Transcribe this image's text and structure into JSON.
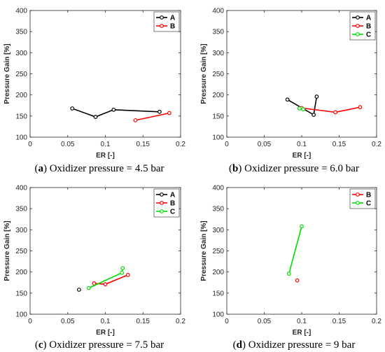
{
  "chart_data": [
    {
      "type": "line",
      "caption_letter": "a",
      "caption_text": "Oxidizer pressure = 4.5 bar",
      "xlabel": "ER [-]",
      "ylabel": "Pressure Gain [%]",
      "xlim": [
        0,
        0.2
      ],
      "ylim": [
        100,
        400
      ],
      "xticks": [
        "0",
        "0.05",
        "0.1",
        "0.15",
        "0.2"
      ],
      "yticks": [
        "100",
        "150",
        "200",
        "250",
        "300",
        "350",
        "400"
      ],
      "legend_position": "top-right",
      "series": [
        {
          "name": "A",
          "color": "#000000",
          "x": [
            0.056,
            0.087,
            0.111,
            0.172
          ],
          "y": [
            168,
            148,
            165,
            160
          ]
        },
        {
          "name": "B",
          "color": "#ff0000",
          "x": [
            0.14,
            0.185
          ],
          "y": [
            140,
            157
          ]
        }
      ]
    },
    {
      "type": "line",
      "caption_letter": "b",
      "caption_text": "Oxidizer pressure = 6.0 bar",
      "xlabel": "ER [-]",
      "ylabel": "Pressure Gain [%]",
      "xlim": [
        0,
        0.2
      ],
      "ylim": [
        100,
        400
      ],
      "xticks": [
        "0",
        "0.05",
        "0.1",
        "0.15",
        "0.2"
      ],
      "yticks": [
        "100",
        "150",
        "200",
        "250",
        "300",
        "350",
        "400"
      ],
      "legend_position": "top-right",
      "series": [
        {
          "name": "A",
          "color": "#000000",
          "x": [
            0.081,
            0.116,
            0.12
          ],
          "y": [
            189,
            153,
            196
          ]
        },
        {
          "name": "B",
          "color": "#ff0000",
          "x": [
            0.1,
            0.145,
            0.178
          ],
          "y": [
            169,
            159,
            171
          ]
        },
        {
          "name": "C",
          "color": "#00dd00",
          "x": [
            0.097,
            0.102
          ],
          "y": [
            168,
            166
          ]
        }
      ]
    },
    {
      "type": "line",
      "caption_letter": "c",
      "caption_text": "Oxidizer pressure = 7.5 bar",
      "xlabel": "ER [-]",
      "ylabel": "Pressure Gain [%]",
      "xlim": [
        0,
        0.2
      ],
      "ylim": [
        100,
        400
      ],
      "xticks": [
        "0",
        "0.05",
        "0.1",
        "0.15",
        "0.2"
      ],
      "yticks": [
        "100",
        "150",
        "200",
        "250",
        "300",
        "350",
        "400"
      ],
      "legend_position": "top-right",
      "series": [
        {
          "name": "A",
          "color": "#000000",
          "x": [
            0.065
          ],
          "y": [
            158
          ]
        },
        {
          "name": "B",
          "color": "#ff0000",
          "x": [
            0.085,
            0.1,
            0.13
          ],
          "y": [
            173,
            171,
            193
          ]
        },
        {
          "name": "C",
          "color": "#00dd00",
          "x": [
            0.078,
            0.122,
            0.123
          ],
          "y": [
            162,
            198,
            209
          ]
        }
      ]
    },
    {
      "type": "line",
      "caption_letter": "d",
      "caption_text": "Oxidizer pressure = 9 bar",
      "xlabel": "ER [-]",
      "ylabel": "Pressure Gain [%]",
      "xlim": [
        0,
        0.2
      ],
      "ylim": [
        100,
        400
      ],
      "xticks": [
        "0",
        "0.05",
        "0.1",
        "0.15",
        "0.2"
      ],
      "yticks": [
        "100",
        "150",
        "200",
        "250",
        "300",
        "350",
        "400"
      ],
      "legend_position": "top-right",
      "series": [
        {
          "name": "B",
          "color": "#ff0000",
          "x": [
            0.094
          ],
          "y": [
            180
          ]
        },
        {
          "name": "C",
          "color": "#00dd00",
          "x": [
            0.083,
            0.1
          ],
          "y": [
            196,
            308
          ]
        }
      ]
    }
  ]
}
